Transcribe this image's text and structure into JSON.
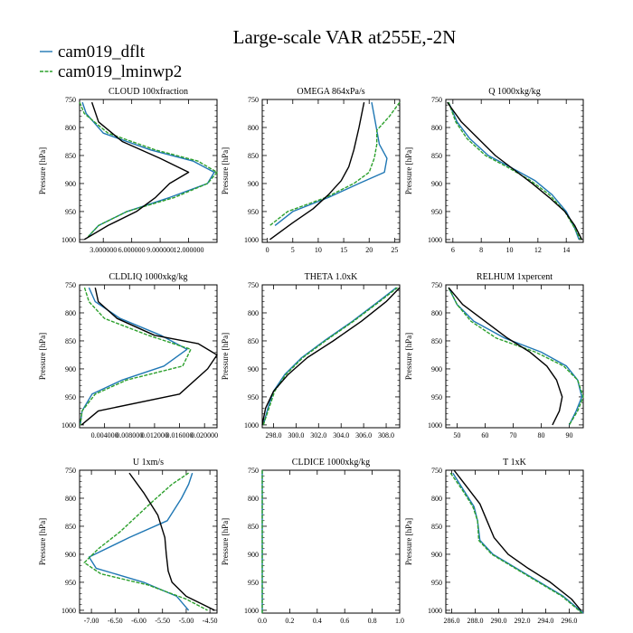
{
  "figure": {
    "title": "Large-scale VAR at255E,-2N",
    "legend": [
      {
        "label": "cam019_dflt",
        "color": "#1f77b4"
      },
      {
        "label": "cam019_lminwp2",
        "color": "#2ca02c"
      }
    ],
    "obs_color": "#000000"
  },
  "chart_data": [
    {
      "type": "line",
      "title": "CLOUD  100xfraction",
      "ylabel": "Pressure [hPa]",
      "xlim": [
        0.5,
        15.0
      ],
      "ylim": [
        1005,
        750
      ],
      "xticks": [
        3,
        6,
        9,
        12
      ],
      "xticklabels": [
        "3.000000",
        "6.000000",
        "9.000000",
        "12.000000"
      ],
      "yticks": [
        750,
        800,
        850,
        900,
        950,
        1000
      ],
      "series": [
        {
          "name": "cam019_dflt",
          "color": "#1f77b4",
          "dash": "none",
          "x": [
            0.8,
            1.2,
            3.0,
            8.0,
            12.5,
            14.7,
            14.0,
            10.0,
            5.5,
            2.5,
            1.4
          ],
          "y": [
            755,
            775,
            810,
            840,
            860,
            880,
            900,
            925,
            950,
            975,
            995
          ]
        },
        {
          "name": "cam019_lminwp2",
          "color": "#2ca02c",
          "dash": "4,1.5",
          "x": [
            0.4,
            1.0,
            3.5,
            8.5,
            13.0,
            15.0,
            14.0,
            10.5,
            5.5,
            2.5,
            1.4
          ],
          "y": [
            755,
            775,
            810,
            840,
            860,
            880,
            900,
            925,
            950,
            975,
            995
          ]
        },
        {
          "name": "obs",
          "color": "#000000",
          "dash": "none",
          "x": [
            1.8,
            2.5,
            5.0,
            9.0,
            12.0,
            10.0,
            8.5,
            6.5,
            3.5,
            1.0
          ],
          "y": [
            755,
            790,
            825,
            855,
            880,
            900,
            925,
            950,
            975,
            1000
          ]
        }
      ]
    },
    {
      "type": "line",
      "title": "OMEGA  864xPa/s",
      "ylabel": "Pressure [hPa]",
      "xlim": [
        -1,
        26
      ],
      "ylim": [
        1005,
        750
      ],
      "xticks": [
        0,
        5,
        10,
        15,
        20,
        25
      ],
      "xticklabels": [
        "0",
        "5",
        "10",
        "15",
        "20",
        "25"
      ],
      "yticks": [
        750,
        800,
        850,
        900,
        950,
        1000
      ],
      "series": [
        {
          "name": "cam019_dflt",
          "color": "#1f77b4",
          "dash": "none",
          "x": [
            20.5,
            21,
            21.5,
            22,
            23.5,
            23,
            18,
            12,
            5,
            1.5
          ],
          "y": [
            755,
            780,
            805,
            830,
            855,
            880,
            900,
            925,
            950,
            975
          ]
        },
        {
          "name": "cam019_lminwp2",
          "color": "#2ca02c",
          "dash": "4,1.5",
          "x": [
            26,
            24,
            21.5,
            21.5,
            21,
            20,
            17,
            11.5,
            4,
            0.5
          ],
          "y": [
            755,
            780,
            805,
            830,
            855,
            880,
            900,
            925,
            950,
            975
          ]
        },
        {
          "name": "obs",
          "color": "#000000",
          "dash": "none",
          "x": [
            19,
            18,
            17,
            16,
            14.5,
            12,
            9,
            5,
            0.5
          ],
          "y": [
            755,
            800,
            840,
            870,
            895,
            920,
            945,
            970,
            1000
          ]
        }
      ]
    },
    {
      "type": "line",
      "title": "Q  1000xkg/kg",
      "ylabel": "Pressure [hPa]",
      "xlim": [
        5.5,
        15.2
      ],
      "ylim": [
        1005,
        750
      ],
      "xticks": [
        6,
        8,
        10,
        12,
        14
      ],
      "xticklabels": [
        "6",
        "8",
        "10",
        "12",
        "14"
      ],
      "yticks": [
        750,
        800,
        850,
        900,
        950,
        1000
      ],
      "series": [
        {
          "name": "cam019_dflt",
          "color": "#1f77b4",
          "dash": "none",
          "x": [
            5.7,
            6.3,
            7.2,
            8.5,
            10.0,
            11.8,
            13.0,
            14.0,
            14.6,
            14.9
          ],
          "y": [
            755,
            790,
            820,
            850,
            870,
            895,
            920,
            950,
            980,
            1000
          ]
        },
        {
          "name": "cam019_lminwp2",
          "color": "#2ca02c",
          "dash": "4,1.5",
          "x": [
            5.7,
            6.2,
            7.0,
            8.3,
            9.8,
            11.5,
            12.8,
            13.9,
            14.6,
            15.0
          ],
          "y": [
            755,
            790,
            820,
            850,
            870,
            895,
            920,
            950,
            980,
            1000
          ]
        },
        {
          "name": "obs",
          "color": "#000000",
          "dash": "none",
          "x": [
            5.6,
            6.6,
            7.8,
            9.0,
            10.3,
            11.6,
            12.8,
            13.9,
            14.6,
            15.1
          ],
          "y": [
            755,
            790,
            820,
            850,
            875,
            900,
            925,
            950,
            975,
            1000
          ]
        }
      ]
    },
    {
      "type": "line",
      "title": "CLDLIQ  1000xkg/kg",
      "ylabel": "Pressure [hPa]",
      "xlim": [
        0,
        0.022
      ],
      "ylim": [
        1005,
        750
      ],
      "xticks": [
        0.004,
        0.008,
        0.012,
        0.016,
        0.02
      ],
      "xticklabels": [
        "0.004000",
        "0.008000",
        "0.012000",
        "0.016000",
        "0.020000"
      ],
      "yticks": [
        750,
        800,
        850,
        900,
        950,
        1000
      ],
      "series": [
        {
          "name": "cam019_dflt",
          "color": "#1f77b4",
          "dash": "none",
          "x": [
            0.0015,
            0.0025,
            0.0065,
            0.013,
            0.0172,
            0.0135,
            0.0068,
            0.002,
            0.0004,
            0.0001
          ],
          "y": [
            755,
            780,
            810,
            840,
            865,
            895,
            920,
            945,
            975,
            1000
          ]
        },
        {
          "name": "cam019_lminwp2",
          "color": "#2ca02c",
          "dash": "4,1.5",
          "x": [
            0.0008,
            0.0015,
            0.004,
            0.011,
            0.0178,
            0.0165,
            0.0075,
            0.0025,
            0.0004,
            0.0001
          ],
          "y": [
            755,
            780,
            810,
            840,
            865,
            895,
            920,
            945,
            975,
            1000
          ]
        },
        {
          "name": "obs",
          "color": "#000000",
          "dash": "none",
          "x": [
            0.0025,
            0.003,
            0.006,
            0.012,
            0.019,
            0.022,
            0.0205,
            0.016,
            0.003,
            0.0003
          ],
          "y": [
            755,
            780,
            810,
            840,
            855,
            875,
            900,
            945,
            975,
            1000
          ]
        }
      ]
    },
    {
      "type": "line",
      "title": "THETA  1.0xK",
      "ylabel": "Pressure [hPa]",
      "xlim": [
        297,
        309.2
      ],
      "ylim": [
        1005,
        750
      ],
      "xticks": [
        298,
        300,
        302,
        304,
        306,
        308
      ],
      "xticklabels": [
        "298.0",
        "300.0",
        "302.0",
        "304.0",
        "306.0",
        "308.0"
      ],
      "yticks": [
        750,
        800,
        850,
        900,
        950,
        1000
      ],
      "series": [
        {
          "name": "cam019_dflt",
          "color": "#1f77b4",
          "dash": "none",
          "x": [
            297.1,
            297.5,
            298.0,
            299.0,
            300.5,
            302.5,
            305.0,
            307.3,
            308.9
          ],
          "y": [
            1000,
            970,
            940,
            910,
            880,
            850,
            815,
            780,
            755
          ]
        },
        {
          "name": "cam019_lminwp2",
          "color": "#2ca02c",
          "dash": "4,1.5",
          "x": [
            297.1,
            297.6,
            298.1,
            299.1,
            300.6,
            302.6,
            305.1,
            307.4,
            309.0
          ],
          "y": [
            1000,
            970,
            940,
            910,
            880,
            850,
            815,
            780,
            755
          ]
        },
        {
          "name": "obs",
          "color": "#000000",
          "dash": "none",
          "x": [
            297.0,
            297.3,
            298.0,
            299.3,
            301.0,
            303.3,
            305.8,
            308.0,
            309.2
          ],
          "y": [
            1000,
            970,
            940,
            910,
            880,
            850,
            815,
            780,
            755
          ]
        }
      ]
    },
    {
      "type": "line",
      "title": "RELHUM  1xpercent",
      "ylabel": "Pressure [hPa]",
      "xlim": [
        46,
        95
      ],
      "ylim": [
        1005,
        750
      ],
      "xticks": [
        50,
        60,
        70,
        80,
        90
      ],
      "xticklabels": [
        "50",
        "60",
        "70",
        "80",
        "90"
      ],
      "yticks": [
        750,
        800,
        850,
        900,
        950,
        1000
      ],
      "series": [
        {
          "name": "cam019_dflt",
          "color": "#1f77b4",
          "dash": "none",
          "x": [
            47,
            50,
            56,
            67,
            80,
            89,
            93,
            94.5,
            92.5,
            90
          ],
          "y": [
            755,
            785,
            815,
            845,
            870,
            895,
            920,
            950,
            975,
            1000
          ]
        },
        {
          "name": "cam019_lminwp2",
          "color": "#2ca02c",
          "dash": "4,1.5",
          "x": [
            47,
            50,
            55,
            64,
            78,
            88,
            93,
            95,
            93,
            90
          ],
          "y": [
            755,
            785,
            815,
            845,
            870,
            895,
            920,
            950,
            975,
            1000
          ]
        },
        {
          "name": "obs",
          "color": "#000000",
          "dash": "none",
          "x": [
            47,
            52,
            60,
            68,
            76,
            82,
            85.5,
            87.5,
            86.5,
            84
          ],
          "y": [
            755,
            785,
            815,
            845,
            870,
            895,
            920,
            950,
            975,
            1000
          ]
        }
      ]
    },
    {
      "type": "line",
      "title": "U  1xm/s",
      "ylabel": "Pressure [hPa]",
      "xlim": [
        -7.25,
        -4.35
      ],
      "ylim": [
        1005,
        750
      ],
      "xticks": [
        -7,
        -6.5,
        -6,
        -5.5,
        -5,
        -4.5
      ],
      "xticklabels": [
        "-7.00",
        "-6.50",
        "-6.00",
        "-5.50",
        "-5.00",
        "-4.50"
      ],
      "yticks": [
        750,
        800,
        850,
        900,
        950,
        1000
      ],
      "series": [
        {
          "name": "cam019_dflt",
          "color": "#1f77b4",
          "dash": "none",
          "x": [
            -4.87,
            -4.95,
            -5.1,
            -5.4,
            -6.2,
            -7.05,
            -6.9,
            -5.9,
            -5.2,
            -4.95
          ],
          "y": [
            755,
            775,
            800,
            840,
            870,
            905,
            925,
            950,
            975,
            1000
          ]
        },
        {
          "name": "cam019_lminwp2",
          "color": "#2ca02c",
          "dash": "4,1.5",
          "x": [
            -4.95,
            -5.3,
            -5.7,
            -6.4,
            -6.85,
            -7.15,
            -6.8,
            -5.8,
            -5.0,
            -4.55
          ],
          "y": [
            755,
            775,
            805,
            860,
            890,
            915,
            935,
            955,
            980,
            1000
          ]
        },
        {
          "name": "obs",
          "color": "#000000",
          "dash": "none",
          "x": [
            -6.2,
            -5.9,
            -5.6,
            -5.45,
            -5.42,
            -5.38,
            -5.3,
            -5.0,
            -4.4
          ],
          "y": [
            755,
            790,
            830,
            870,
            900,
            930,
            950,
            975,
            1000
          ]
        }
      ]
    },
    {
      "type": "line",
      "title": "CLDICE  1000xkg/kg",
      "ylabel": "Pressure [hPa]",
      "xlim": [
        0,
        1
      ],
      "ylim": [
        1005,
        750
      ],
      "xticks": [
        0,
        0.2,
        0.4,
        0.6,
        0.8,
        1.0
      ],
      "xticklabels": [
        "0.0",
        "0.2",
        "0.4",
        "0.6",
        "0.8",
        "1.0"
      ],
      "yticks": [
        750,
        800,
        850,
        900,
        950,
        1000
      ],
      "series": [
        {
          "name": "cam019_dflt",
          "color": "#1f77b4",
          "dash": "none",
          "x": [
            0,
            0
          ],
          "y": [
            750,
            1005
          ]
        },
        {
          "name": "cam019_lminwp2",
          "color": "#2ca02c",
          "dash": "4,1.5",
          "x": [
            0,
            0
          ],
          "y": [
            750,
            1005
          ]
        }
      ]
    },
    {
      "type": "line",
      "title": "T  1xK",
      "ylabel": "Pressure [hPa]",
      "xlim": [
        285.5,
        297.2
      ],
      "ylim": [
        1005,
        750
      ],
      "xticks": [
        286,
        288,
        290,
        292,
        294,
        296
      ],
      "xticklabels": [
        "286.0",
        "288.0",
        "290.0",
        "292.0",
        "294.0",
        "296.0"
      ],
      "yticks": [
        750,
        800,
        850,
        900,
        950,
        1000
      ],
      "series": [
        {
          "name": "cam019_dflt",
          "color": "#1f77b4",
          "dash": "none",
          "x": [
            286.1,
            287.0,
            287.9,
            288.2,
            288.4,
            289.5,
            291.5,
            293.5,
            295.5,
            297.2
          ],
          "y": [
            755,
            785,
            815,
            840,
            875,
            900,
            925,
            950,
            975,
            1005
          ]
        },
        {
          "name": "cam019_lminwp2",
          "color": "#2ca02c",
          "dash": "4,1.5",
          "x": [
            285.9,
            286.9,
            287.8,
            288.2,
            288.3,
            289.4,
            291.4,
            293.4,
            295.4,
            297.1
          ],
          "y": [
            755,
            785,
            815,
            840,
            875,
            900,
            925,
            950,
            975,
            1005
          ]
        },
        {
          "name": "obs",
          "color": "#000000",
          "dash": "none",
          "x": [
            286.2,
            287.3,
            288.4,
            289.0,
            289.6,
            290.8,
            292.5,
            294.4,
            296.2,
            297.0
          ],
          "y": [
            750,
            780,
            810,
            840,
            870,
            900,
            925,
            950,
            980,
            1000
          ]
        }
      ]
    }
  ]
}
